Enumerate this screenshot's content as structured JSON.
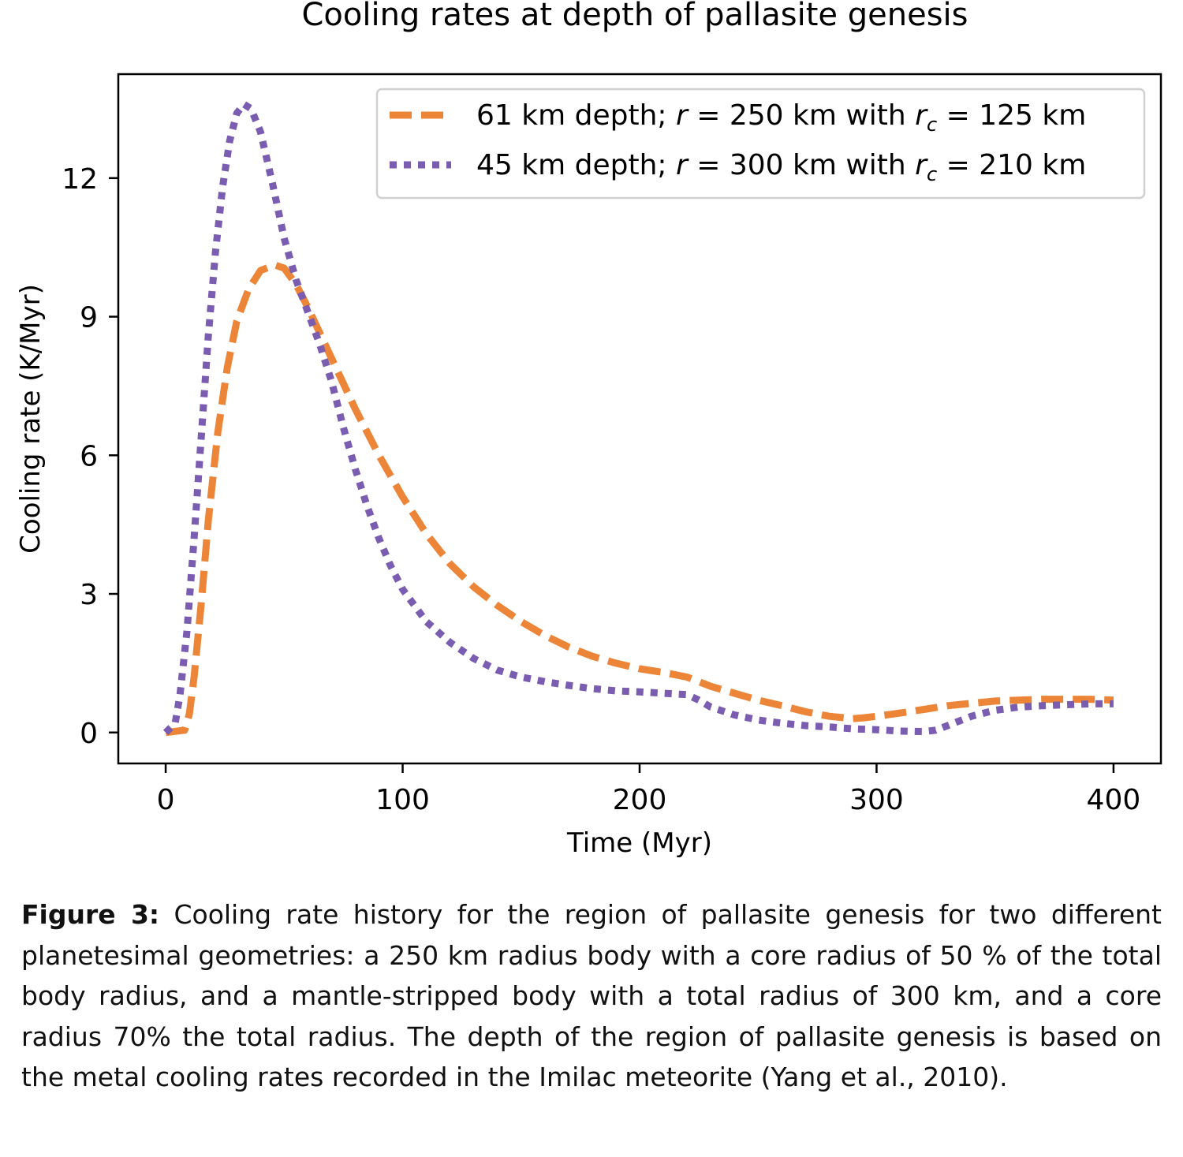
{
  "chart_data": {
    "type": "line",
    "title": "Cooling rates at depth of pallasite genesis",
    "xlabel": "Time (Myr)",
    "ylabel": "Cooling rate (K/Myr)",
    "xlim": [
      -20,
      420
    ],
    "ylim": [
      -0.67,
      14.25
    ],
    "xticks": [
      0,
      100,
      200,
      300,
      400
    ],
    "yticks": [
      0,
      3,
      6,
      9,
      12
    ],
    "xtick_labels": [
      "0",
      "100",
      "200",
      "300",
      "400"
    ],
    "ytick_labels": [
      "0",
      "3",
      "6",
      "9",
      "12"
    ],
    "grid": false,
    "legend_position": "top-right",
    "series": [
      {
        "name": "61 km depth; r = 250 km with rc = 125 km",
        "legend_parts": {
          "pre": "61 km depth; ",
          "r": "r",
          "eq1": " = 250 km with ",
          "rc": "r",
          "rc_sub": "c",
          "eq2": " = 125 km"
        },
        "color": "#ED8538",
        "style": "dashed",
        "points": [
          [
            0,
            0
          ],
          [
            8,
            0.05
          ],
          [
            10,
            0.4
          ],
          [
            12,
            1.2
          ],
          [
            15,
            2.8
          ],
          [
            18,
            4.6
          ],
          [
            22,
            6.5
          ],
          [
            26,
            7.9
          ],
          [
            30,
            8.9
          ],
          [
            35,
            9.6
          ],
          [
            40,
            10.0
          ],
          [
            46,
            10.12
          ],
          [
            50,
            10.05
          ],
          [
            55,
            9.7
          ],
          [
            60,
            9.2
          ],
          [
            70,
            8.1
          ],
          [
            80,
            7.0
          ],
          [
            90,
            6.0
          ],
          [
            100,
            5.1
          ],
          [
            110,
            4.3
          ],
          [
            120,
            3.65
          ],
          [
            130,
            3.15
          ],
          [
            140,
            2.75
          ],
          [
            150,
            2.4
          ],
          [
            160,
            2.1
          ],
          [
            170,
            1.85
          ],
          [
            180,
            1.65
          ],
          [
            190,
            1.5
          ],
          [
            200,
            1.38
          ],
          [
            210,
            1.3
          ],
          [
            220,
            1.2
          ],
          [
            230,
            1.0
          ],
          [
            240,
            0.85
          ],
          [
            250,
            0.7
          ],
          [
            260,
            0.58
          ],
          [
            270,
            0.45
          ],
          [
            280,
            0.35
          ],
          [
            290,
            0.3
          ],
          [
            295,
            0.32
          ],
          [
            300,
            0.35
          ],
          [
            310,
            0.42
          ],
          [
            320,
            0.5
          ],
          [
            330,
            0.58
          ],
          [
            340,
            0.63
          ],
          [
            350,
            0.68
          ],
          [
            360,
            0.7
          ],
          [
            370,
            0.72
          ],
          [
            380,
            0.72
          ],
          [
            390,
            0.72
          ],
          [
            400,
            0.7
          ]
        ]
      },
      {
        "name": "45 km depth; r = 300 km with rc = 210 km",
        "legend_parts": {
          "pre": "45 km depth; ",
          "r": "r",
          "eq1": " = 300 km with ",
          "rc": "r",
          "rc_sub": "c",
          "eq2": " = 210 km"
        },
        "color": "#7A5CB0",
        "style": "dotted",
        "points": [
          [
            0,
            0
          ],
          [
            4,
            0.2
          ],
          [
            6,
            0.8
          ],
          [
            9,
            2.2
          ],
          [
            12,
            4.2
          ],
          [
            15,
            6.4
          ],
          [
            18,
            8.6
          ],
          [
            21,
            10.4
          ],
          [
            24,
            11.8
          ],
          [
            27,
            12.8
          ],
          [
            30,
            13.4
          ],
          [
            33,
            13.6
          ],
          [
            36,
            13.5
          ],
          [
            40,
            13.0
          ],
          [
            45,
            11.9
          ],
          [
            50,
            10.7
          ],
          [
            55,
            9.8
          ],
          [
            60,
            9.1
          ],
          [
            65,
            8.4
          ],
          [
            70,
            7.6
          ],
          [
            75,
            6.6
          ],
          [
            80,
            5.7
          ],
          [
            85,
            4.9
          ],
          [
            90,
            4.2
          ],
          [
            95,
            3.6
          ],
          [
            100,
            3.1
          ],
          [
            110,
            2.4
          ],
          [
            120,
            1.95
          ],
          [
            130,
            1.6
          ],
          [
            140,
            1.35
          ],
          [
            150,
            1.2
          ],
          [
            160,
            1.1
          ],
          [
            170,
            1.02
          ],
          [
            180,
            0.95
          ],
          [
            190,
            0.9
          ],
          [
            200,
            0.88
          ],
          [
            210,
            0.85
          ],
          [
            220,
            0.82
          ],
          [
            225,
            0.7
          ],
          [
            230,
            0.55
          ],
          [
            240,
            0.38
          ],
          [
            250,
            0.27
          ],
          [
            260,
            0.2
          ],
          [
            270,
            0.15
          ],
          [
            280,
            0.12
          ],
          [
            290,
            0.08
          ],
          [
            300,
            0.06
          ],
          [
            310,
            0.03
          ],
          [
            320,
            0.02
          ],
          [
            325,
            0.05
          ],
          [
            330,
            0.15
          ],
          [
            340,
            0.35
          ],
          [
            350,
            0.48
          ],
          [
            360,
            0.55
          ],
          [
            370,
            0.58
          ],
          [
            380,
            0.6
          ],
          [
            390,
            0.62
          ],
          [
            400,
            0.62
          ]
        ]
      }
    ]
  },
  "caption": {
    "label": "Figure 3:",
    "text": " Cooling rate history for the region of pallasite genesis for two different planetesimal geometries: a 250 km radius body with a core radius of 50 % of the total body radius, and a mantle-stripped body with a total radius of 300 km, and a core radius 70% the total radius. The depth of the region of pallasite genesis is based on the metal cooling rates recorded in the Imilac meteorite (Yang et al., 2010)."
  }
}
